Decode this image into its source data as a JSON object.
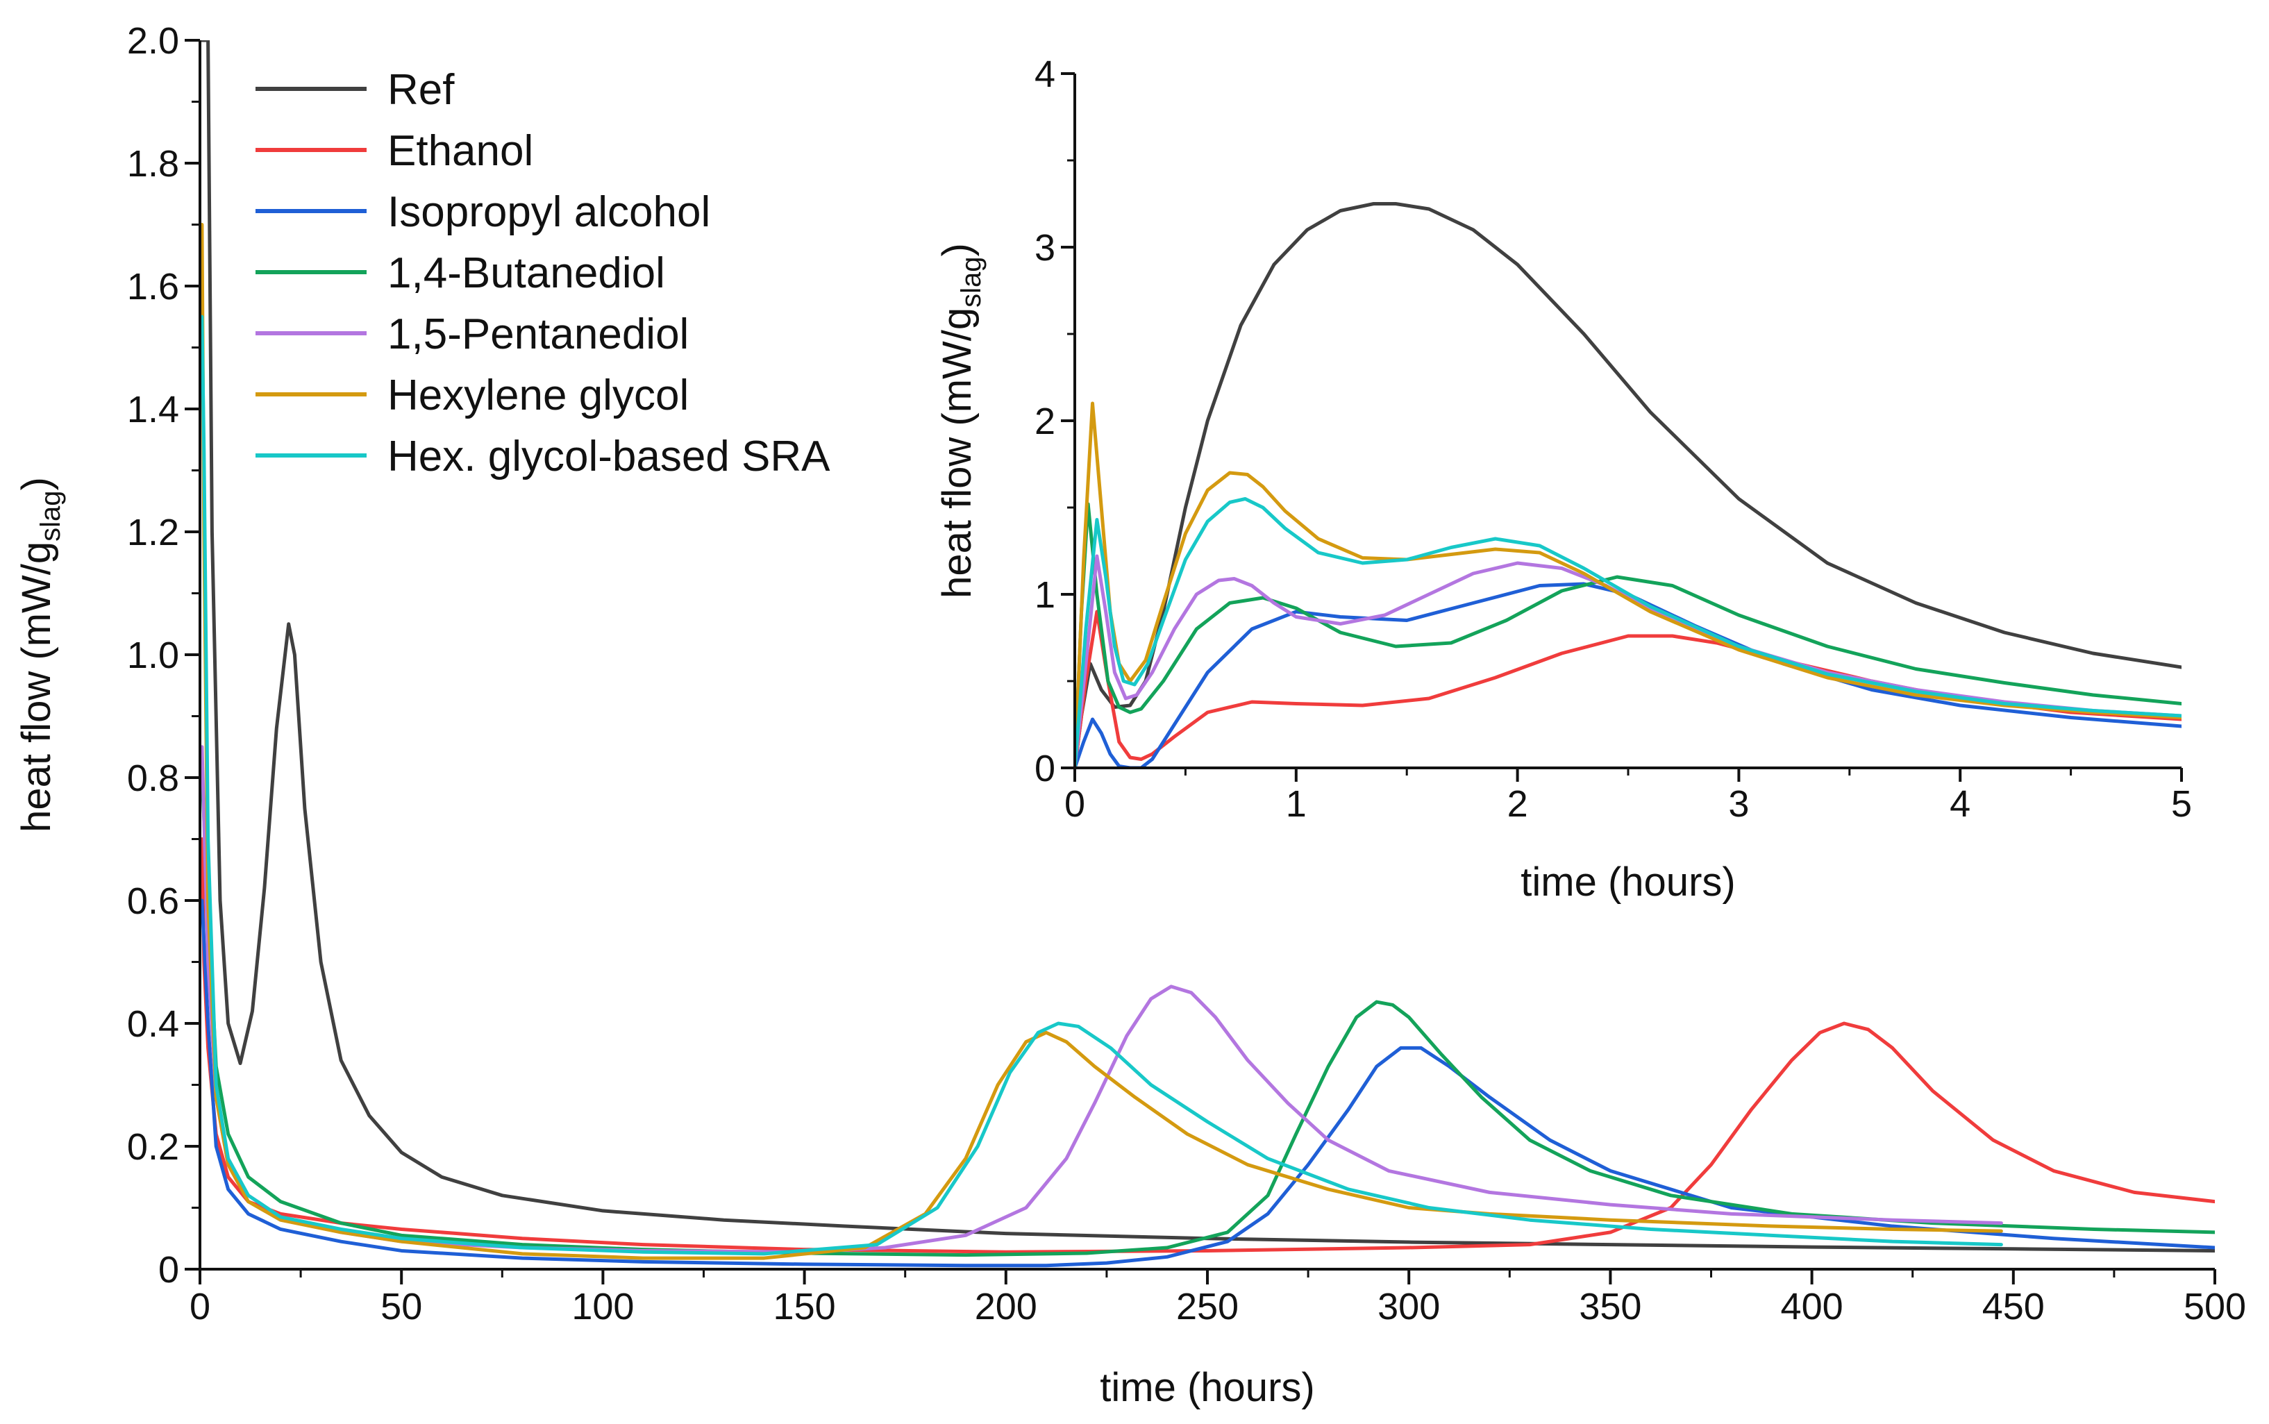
{
  "chart_data": [
    {
      "id": "main",
      "type": "line",
      "xlabel": "time (hours)",
      "ylabel": "heat flow (mW/g_slag)",
      "ylabel_main": "heat flow (mW/g",
      "ylabel_sub": "slag",
      "ylabel_end": ")",
      "xlim": [
        0,
        500
      ],
      "ylim": [
        0,
        2.0
      ],
      "xticks": [
        0,
        50,
        100,
        150,
        200,
        250,
        300,
        350,
        400,
        450,
        500
      ],
      "xtick_labels": [
        "0",
        "50",
        "100",
        "150",
        "200",
        "250",
        "300",
        "350",
        "400",
        "450",
        "500"
      ],
      "yticks": [
        0,
        0.2,
        0.4,
        0.6,
        0.8,
        1.0,
        1.2,
        1.4,
        1.6,
        1.8,
        2.0
      ],
      "ytick_labels": [
        "0",
        "0.2",
        "0.4",
        "0.6",
        "0.8",
        "1.0",
        "1.2",
        "1.4",
        "1.6",
        "1.8",
        "2.0"
      ],
      "legend_position": "top-left",
      "series": [
        {
          "name": "Ref",
          "color": "#404040",
          "x": [
            0.5,
            2,
            3,
            5,
            7,
            10,
            13,
            16,
            19,
            22,
            23.5,
            26,
            30,
            35,
            42,
            50,
            60,
            75,
            100,
            130,
            160,
            200,
            250,
            300,
            350,
            400,
            450,
            500
          ],
          "y": [
            2.0,
            2.0,
            1.2,
            0.6,
            0.4,
            0.335,
            0.42,
            0.62,
            0.88,
            1.05,
            1.0,
            0.75,
            0.5,
            0.34,
            0.25,
            0.19,
            0.15,
            0.12,
            0.095,
            0.08,
            0.07,
            0.058,
            0.05,
            0.044,
            0.04,
            0.036,
            0.033,
            0.03
          ]
        },
        {
          "name": "Ethanol",
          "color": "#f03c3c",
          "x": [
            0.5,
            1,
            2,
            4,
            7,
            12,
            20,
            35,
            50,
            80,
            110,
            150,
            200,
            250,
            300,
            330,
            350,
            365,
            375,
            385,
            395,
            402,
            408,
            414,
            420,
            430,
            445,
            460,
            480,
            500
          ],
          "y": [
            0.7,
            0.5,
            0.36,
            0.22,
            0.15,
            0.11,
            0.09,
            0.075,
            0.065,
            0.05,
            0.04,
            0.032,
            0.028,
            0.03,
            0.035,
            0.04,
            0.06,
            0.1,
            0.17,
            0.26,
            0.34,
            0.385,
            0.4,
            0.39,
            0.36,
            0.29,
            0.21,
            0.16,
            0.125,
            0.11
          ]
        },
        {
          "name": "Isopropyl alcohol",
          "color": "#1f5fd6",
          "x": [
            0.5,
            2,
            4,
            7,
            12,
            20,
            35,
            50,
            80,
            110,
            150,
            190,
            210,
            225,
            240,
            255,
            265,
            275,
            285,
            292,
            298,
            303,
            310,
            320,
            335,
            350,
            380,
            420,
            460,
            500
          ],
          "y": [
            0.6,
            0.4,
            0.2,
            0.13,
            0.09,
            0.065,
            0.045,
            0.03,
            0.018,
            0.012,
            0.008,
            0.006,
            0.006,
            0.01,
            0.02,
            0.045,
            0.09,
            0.17,
            0.26,
            0.33,
            0.36,
            0.36,
            0.33,
            0.28,
            0.21,
            0.16,
            0.1,
            0.07,
            0.05,
            0.035
          ]
        },
        {
          "name": "1,4-Butanediol",
          "color": "#13a35a",
          "x": [
            0.5,
            2,
            4,
            7,
            12,
            20,
            35,
            50,
            80,
            110,
            150,
            190,
            220,
            240,
            255,
            265,
            272,
            280,
            287,
            292,
            296,
            300,
            308,
            318,
            330,
            345,
            365,
            395,
            430,
            470,
            500
          ],
          "y": [
            0.8,
            0.6,
            0.33,
            0.22,
            0.15,
            0.11,
            0.075,
            0.055,
            0.04,
            0.032,
            0.026,
            0.023,
            0.026,
            0.035,
            0.06,
            0.12,
            0.22,
            0.33,
            0.41,
            0.435,
            0.43,
            0.41,
            0.35,
            0.28,
            0.21,
            0.16,
            0.12,
            0.09,
            0.075,
            0.065,
            0.06
          ]
        },
        {
          "name": "1,5-Pentanediol",
          "color": "#b376e0",
          "x": [
            0.5,
            2,
            4,
            7,
            12,
            20,
            35,
            50,
            80,
            110,
            150,
            170,
            190,
            205,
            215,
            222,
            230,
            236,
            241,
            246,
            252,
            260,
            270,
            280,
            295,
            320,
            350,
            380,
            420,
            447
          ],
          "y": [
            0.85,
            0.5,
            0.28,
            0.17,
            0.12,
            0.085,
            0.06,
            0.045,
            0.035,
            0.03,
            0.028,
            0.035,
            0.055,
            0.1,
            0.18,
            0.27,
            0.38,
            0.44,
            0.46,
            0.45,
            0.41,
            0.34,
            0.27,
            0.21,
            0.16,
            0.125,
            0.105,
            0.09,
            0.08,
            0.075
          ]
        },
        {
          "name": "Hexylene glycol",
          "color": "#d49a10",
          "x": [
            0.5,
            1,
            2,
            4,
            7,
            12,
            20,
            35,
            50,
            80,
            110,
            140,
            165,
            180,
            190,
            198,
            205,
            210,
            215,
            222,
            232,
            245,
            260,
            280,
            300,
            320,
            350,
            390,
            420,
            447
          ],
          "y": [
            1.7,
            1.2,
            0.6,
            0.28,
            0.17,
            0.11,
            0.08,
            0.06,
            0.045,
            0.025,
            0.018,
            0.018,
            0.035,
            0.09,
            0.18,
            0.3,
            0.37,
            0.385,
            0.37,
            0.33,
            0.28,
            0.22,
            0.17,
            0.13,
            0.1,
            0.09,
            0.08,
            0.07,
            0.065,
            0.062
          ]
        },
        {
          "name": "Hex. glycol-based SRA",
          "color": "#18c8c8",
          "x": [
            0.5,
            1,
            2,
            4,
            7,
            12,
            20,
            35,
            50,
            80,
            110,
            140,
            168,
            183,
            193,
            201,
            208,
            213,
            218,
            226,
            236,
            250,
            265,
            285,
            305,
            330,
            360,
            390,
            420,
            447
          ],
          "y": [
            1.55,
            1.33,
            0.7,
            0.3,
            0.18,
            0.12,
            0.085,
            0.065,
            0.05,
            0.035,
            0.028,
            0.025,
            0.04,
            0.1,
            0.2,
            0.32,
            0.385,
            0.4,
            0.395,
            0.36,
            0.3,
            0.24,
            0.18,
            0.13,
            0.1,
            0.08,
            0.065,
            0.055,
            0.045,
            0.04
          ]
        }
      ]
    },
    {
      "id": "inset",
      "type": "line",
      "xlabel": "time (hours)",
      "ylabel": "heat flow (mW/g_slag)",
      "ylabel_main": "heat flow (mW/g",
      "ylabel_sub": "slag",
      "ylabel_end": ")",
      "xlim": [
        0,
        5
      ],
      "ylim": [
        0,
        4
      ],
      "xticks": [
        0,
        1,
        2,
        3,
        4,
        5
      ],
      "xtick_labels": [
        "0",
        "1",
        "2",
        "3",
        "4",
        "5"
      ],
      "yticks": [
        0,
        1,
        2,
        3,
        4
      ],
      "ytick_labels": [
        "0",
        "1",
        "2",
        "3",
        "4"
      ],
      "series": [
        {
          "name": "Ref",
          "color": "#404040",
          "x": [
            0,
            0.03,
            0.07,
            0.12,
            0.18,
            0.25,
            0.32,
            0.4,
            0.5,
            0.6,
            0.75,
            0.9,
            1.05,
            1.2,
            1.35,
            1.45,
            1.6,
            1.8,
            2.0,
            2.3,
            2.6,
            3.0,
            3.4,
            3.8,
            4.2,
            4.6,
            5.0
          ],
          "y": [
            0,
            0.3,
            0.6,
            0.45,
            0.35,
            0.36,
            0.5,
            0.9,
            1.5,
            2.0,
            2.55,
            2.9,
            3.1,
            3.21,
            3.25,
            3.25,
            3.22,
            3.1,
            2.9,
            2.5,
            2.05,
            1.55,
            1.18,
            0.95,
            0.78,
            0.66,
            0.58
          ]
        },
        {
          "name": "Ethanol",
          "color": "#f03c3c",
          "x": [
            0,
            0.05,
            0.1,
            0.15,
            0.2,
            0.25,
            0.3,
            0.35,
            0.45,
            0.6,
            0.8,
            1.0,
            1.3,
            1.6,
            1.9,
            2.2,
            2.5,
            2.7,
            2.9,
            3.2,
            3.6,
            4.0,
            4.5,
            5.0
          ],
          "y": [
            0,
            0.5,
            0.9,
            0.5,
            0.15,
            0.06,
            0.05,
            0.08,
            0.18,
            0.32,
            0.38,
            0.37,
            0.36,
            0.4,
            0.52,
            0.66,
            0.76,
            0.76,
            0.72,
            0.62,
            0.5,
            0.4,
            0.32,
            0.28
          ]
        },
        {
          "name": "Isopropyl alcohol",
          "color": "#1f5fd6",
          "x": [
            0,
            0.04,
            0.08,
            0.12,
            0.16,
            0.2,
            0.25,
            0.3,
            0.35,
            0.45,
            0.6,
            0.8,
            1.0,
            1.2,
            1.5,
            1.8,
            2.1,
            2.3,
            2.5,
            2.8,
            3.2,
            3.6,
            4.0,
            4.5,
            5.0
          ],
          "y": [
            0,
            0.15,
            0.28,
            0.2,
            0.08,
            0.01,
            0.0,
            0.0,
            0.05,
            0.25,
            0.55,
            0.8,
            0.9,
            0.87,
            0.85,
            0.95,
            1.05,
            1.06,
            1.0,
            0.82,
            0.6,
            0.45,
            0.36,
            0.29,
            0.24
          ]
        },
        {
          "name": "1,4-Butanediol",
          "color": "#13a35a",
          "x": [
            0,
            0.03,
            0.06,
            0.1,
            0.15,
            0.2,
            0.25,
            0.3,
            0.4,
            0.55,
            0.7,
            0.85,
            1.0,
            1.2,
            1.45,
            1.7,
            1.95,
            2.2,
            2.45,
            2.7,
            3.0,
            3.4,
            3.8,
            4.2,
            4.6,
            5.0
          ],
          "y": [
            0,
            0.9,
            1.52,
            1.0,
            0.5,
            0.35,
            0.32,
            0.34,
            0.5,
            0.8,
            0.95,
            0.98,
            0.92,
            0.78,
            0.7,
            0.72,
            0.85,
            1.02,
            1.1,
            1.05,
            0.88,
            0.7,
            0.57,
            0.49,
            0.42,
            0.37
          ]
        },
        {
          "name": "1,5-Pentanediol",
          "color": "#b376e0",
          "x": [
            0,
            0.05,
            0.1,
            0.14,
            0.18,
            0.23,
            0.28,
            0.35,
            0.45,
            0.55,
            0.65,
            0.72,
            0.8,
            0.9,
            1.0,
            1.2,
            1.4,
            1.6,
            1.8,
            2.0,
            2.2,
            2.4,
            2.7,
            3.0,
            3.4,
            3.8,
            4.2,
            4.6,
            5.0
          ],
          "y": [
            0,
            0.6,
            1.22,
            0.9,
            0.55,
            0.4,
            0.42,
            0.55,
            0.8,
            1.0,
            1.08,
            1.09,
            1.05,
            0.95,
            0.87,
            0.83,
            0.88,
            1.0,
            1.12,
            1.18,
            1.15,
            1.05,
            0.85,
            0.7,
            0.55,
            0.45,
            0.38,
            0.33,
            0.3
          ]
        },
        {
          "name": "Hexylene glycol",
          "color": "#d49a10",
          "x": [
            0,
            0.04,
            0.08,
            0.12,
            0.16,
            0.2,
            0.25,
            0.32,
            0.4,
            0.5,
            0.6,
            0.7,
            0.78,
            0.85,
            0.95,
            1.1,
            1.3,
            1.5,
            1.7,
            1.9,
            2.1,
            2.3,
            2.6,
            3.0,
            3.4,
            3.8,
            4.2,
            4.6,
            5.0
          ],
          "y": [
            0,
            1.2,
            2.1,
            1.5,
            0.9,
            0.6,
            0.5,
            0.62,
            0.95,
            1.35,
            1.6,
            1.7,
            1.69,
            1.62,
            1.48,
            1.32,
            1.21,
            1.2,
            1.23,
            1.26,
            1.24,
            1.12,
            0.9,
            0.68,
            0.52,
            0.42,
            0.36,
            0.32,
            0.29
          ]
        },
        {
          "name": "Hex. glycol-based SRA",
          "color": "#18c8c8",
          "x": [
            0,
            0.05,
            0.1,
            0.14,
            0.18,
            0.22,
            0.27,
            0.33,
            0.4,
            0.5,
            0.6,
            0.7,
            0.77,
            0.85,
            0.95,
            1.1,
            1.3,
            1.5,
            1.7,
            1.9,
            2.1,
            2.3,
            2.6,
            3.0,
            3.4,
            3.8,
            4.2,
            4.6,
            5.0
          ],
          "y": [
            0,
            0.8,
            1.43,
            1.1,
            0.7,
            0.5,
            0.48,
            0.6,
            0.85,
            1.2,
            1.42,
            1.53,
            1.55,
            1.5,
            1.38,
            1.24,
            1.18,
            1.2,
            1.27,
            1.32,
            1.28,
            1.15,
            0.93,
            0.7,
            0.54,
            0.44,
            0.37,
            0.33,
            0.3
          ]
        }
      ]
    }
  ]
}
